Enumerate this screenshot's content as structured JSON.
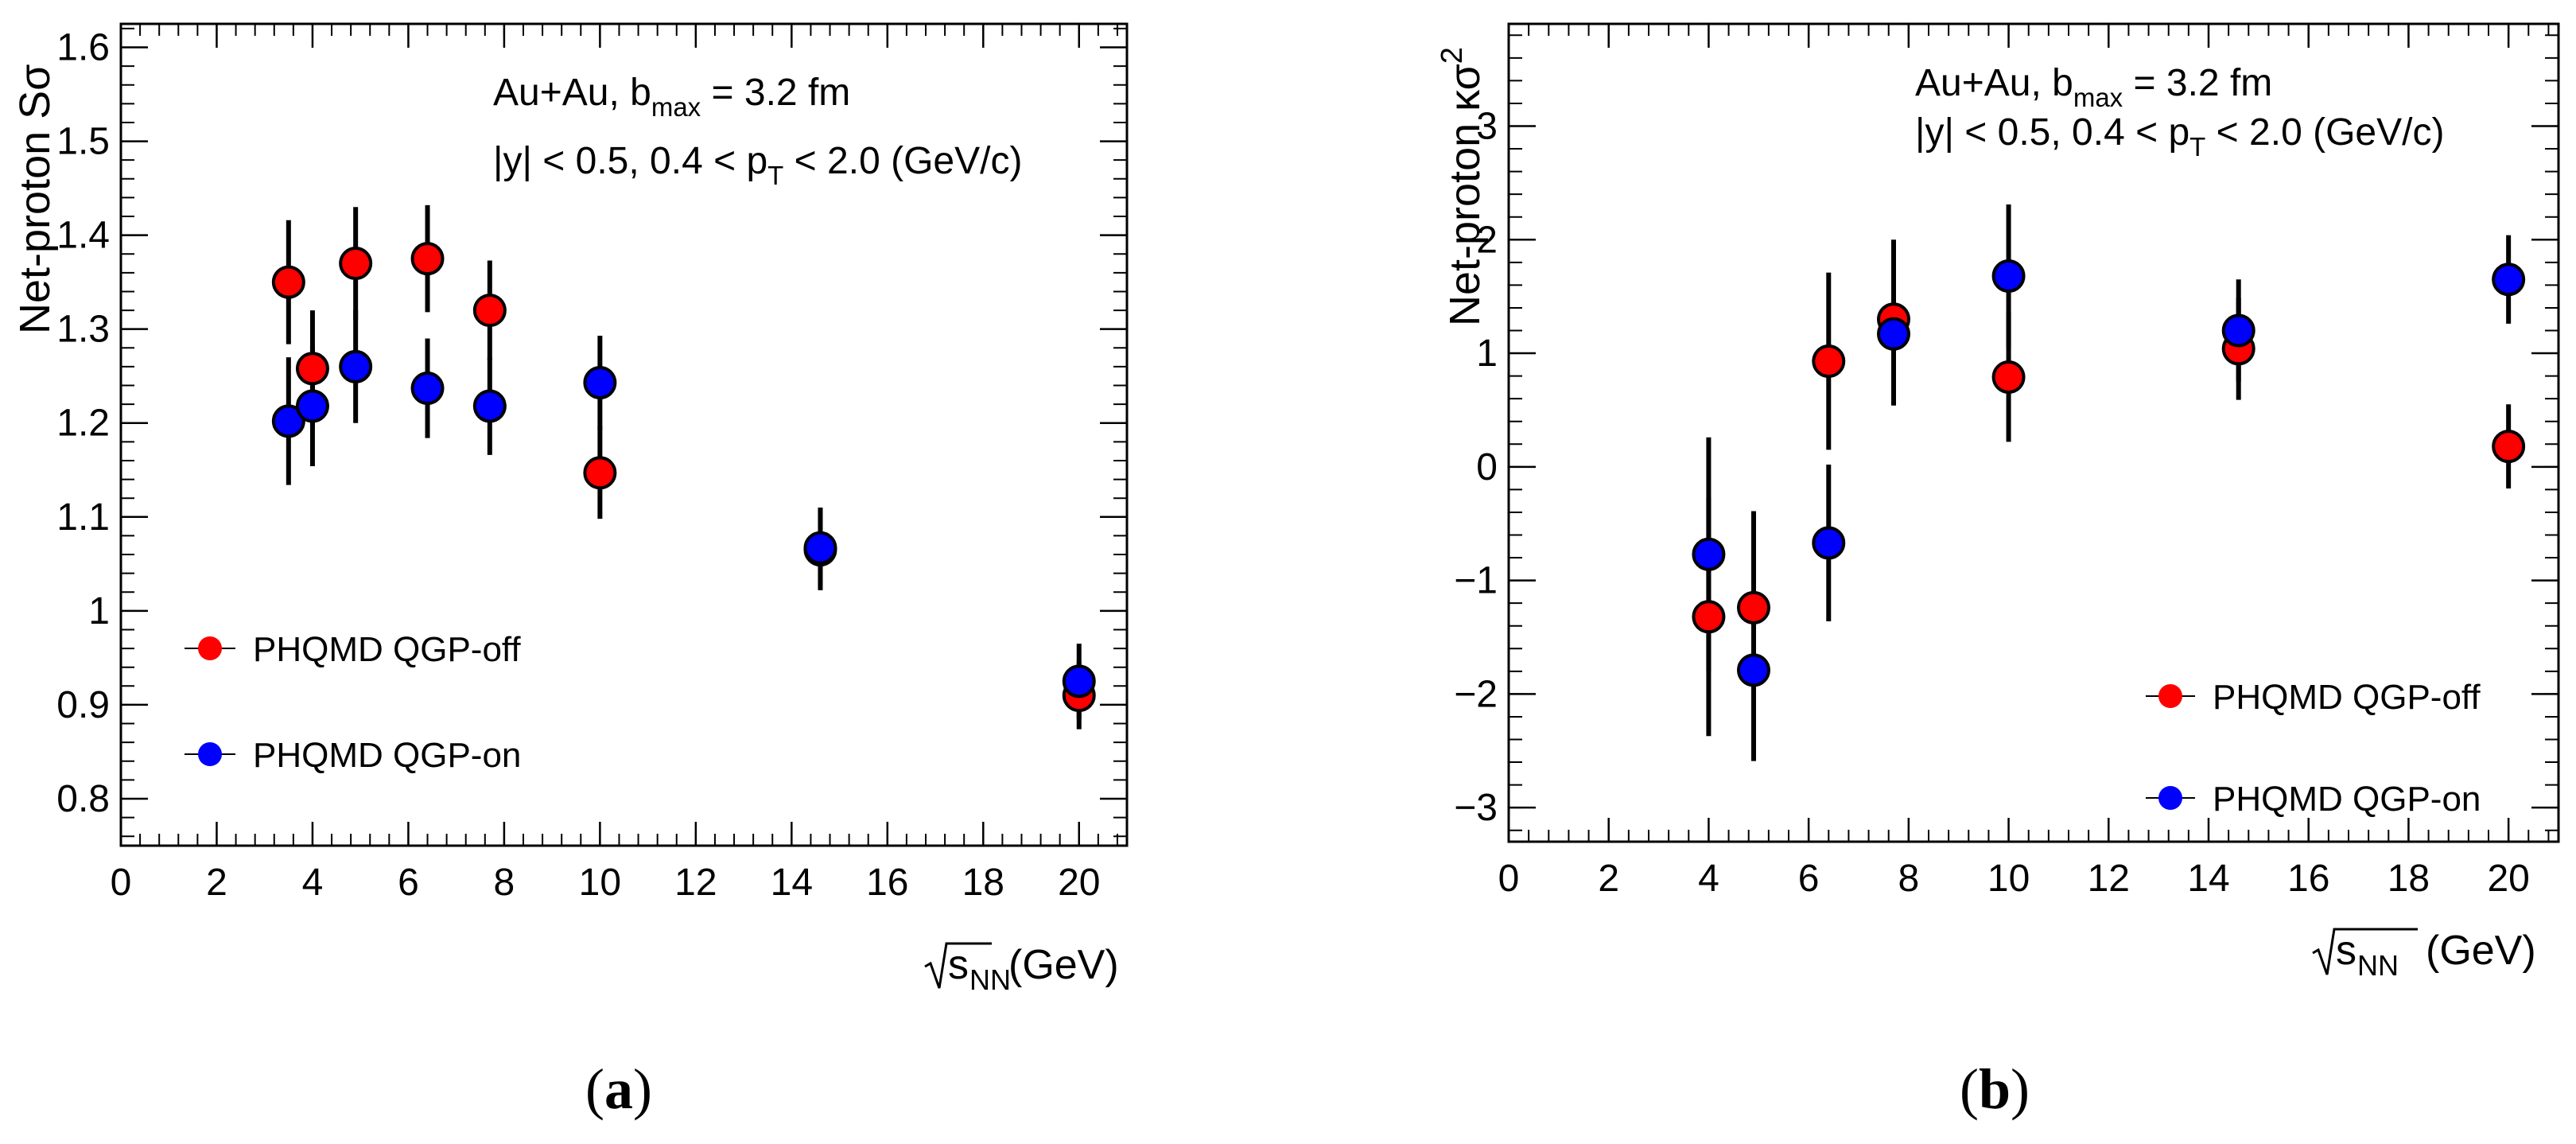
{
  "chart_data": [
    {
      "type": "scatter",
      "panel_label": "a",
      "caption": {
        "open": "(",
        "letter": "a",
        "close": ")"
      },
      "ylabel": {
        "main": "Net-proton S",
        "sym": "σ"
      },
      "xlabel": {
        "sub": "NN",
        "base": "s",
        "unit": "(GeV)"
      },
      "xlim": [
        0,
        21
      ],
      "ylim": [
        0.75,
        1.625
      ],
      "x_ticks": [
        0,
        2,
        4,
        6,
        8,
        10,
        12,
        14,
        16,
        18,
        20
      ],
      "x_tick_labels": [
        "0",
        "2",
        "4",
        "6",
        "8",
        "10",
        "12",
        "14",
        "16",
        "18",
        "20"
      ],
      "y_ticks": [
        0.8,
        0.9,
        1.0,
        1.1,
        1.2,
        1.3,
        1.4,
        1.5,
        1.6
      ],
      "y_tick_labels": [
        "0.8",
        "0.9",
        "1",
        "1.1",
        "1.2",
        "1.3",
        "1.4",
        "1.5",
        "1.6"
      ],
      "annotations": {
        "line1": {
          "a": "Au+Au, b",
          "sub": "max",
          "b": " = 3.2 fm"
        },
        "line2": {
          "a": "|y| < 0.5, 0.4 < p",
          "sub": "T",
          "b": " < 2.0 (GeV/c)"
        }
      },
      "legend": {
        "placement": "center-left",
        "entries": [
          "PHQMD QGP-off",
          "PHQMD QGP-on"
        ]
      },
      "series": [
        {
          "name": "PHQMD QGP-off",
          "color": "#ff0000",
          "x": [
            3.5,
            4.0,
            4.9,
            6.4,
            7.7,
            10.0,
            14.6,
            20.0
          ],
          "y": [
            1.35,
            1.258,
            1.37,
            1.375,
            1.32,
            1.147,
            1.065,
            0.91
          ],
          "err": [
            0.066,
            0.062,
            0.06,
            0.057,
            0.053,
            0.049,
            0.043,
            0.036
          ]
        },
        {
          "name": "PHQMD QGP-on",
          "color": "#0000ff",
          "x": [
            3.5,
            4.0,
            4.9,
            6.4,
            7.7,
            10.0,
            14.6,
            20.0
          ],
          "y": [
            1.202,
            1.218,
            1.26,
            1.237,
            1.218,
            1.243,
            1.067,
            0.925
          ],
          "err": [
            0.068,
            0.064,
            0.06,
            0.053,
            0.052,
            0.05,
            0.043,
            0.04
          ]
        }
      ]
    },
    {
      "type": "scatter",
      "panel_label": "b",
      "caption": {
        "open": "(",
        "letter": "b",
        "close": ")"
      },
      "ylabel": {
        "main": "Net-proton κσ",
        "sup": "2"
      },
      "xlabel": {
        "sub": "NN",
        "base": "s",
        "unit": "(GeV)"
      },
      "xlim": [
        0,
        21
      ],
      "ylim": [
        -3.3,
        3.9
      ],
      "x_ticks": [
        0,
        2,
        4,
        6,
        8,
        10,
        12,
        14,
        16,
        18,
        20
      ],
      "x_tick_labels": [
        "0",
        "2",
        "4",
        "6",
        "8",
        "10",
        "12",
        "14",
        "16",
        "18",
        "20"
      ],
      "y_ticks": [
        -3,
        -2,
        -1,
        0,
        1,
        2,
        3
      ],
      "y_tick_labels": [
        "−3",
        "−2",
        "−1",
        "0",
        "1",
        "2",
        "3"
      ],
      "annotations": {
        "line1": {
          "a": "Au+Au, b",
          "sub": "max",
          "b": " = 3.2 fm"
        },
        "line2": {
          "a": "|y| < 0.5, 0.4 < p",
          "sub": "T",
          "b": " < 2.0 (GeV/c)"
        }
      },
      "legend": {
        "placement": "bottom-right",
        "entries": [
          "PHQMD QGP-off",
          "PHQMD QGP-on"
        ]
      },
      "series": [
        {
          "name": "PHQMD QGP-off",
          "color": "#ff0000",
          "x": [
            4.0,
            4.9,
            6.4,
            7.7,
            10.0,
            14.6,
            20.0
          ],
          "y": [
            -1.32,
            -1.24,
            0.93,
            1.3,
            0.79,
            1.04,
            0.18
          ],
          "err": [
            1.05,
            0.85,
            0.78,
            0.7,
            0.57,
            0.45,
            0.37
          ]
        },
        {
          "name": "PHQMD QGP-on",
          "color": "#0000ff",
          "x": [
            4.0,
            4.9,
            6.4,
            7.7,
            10.0,
            14.6,
            20.0
          ],
          "y": [
            -0.77,
            -1.79,
            -0.67,
            1.17,
            1.68,
            1.2,
            1.65
          ],
          "err": [
            1.03,
            0.8,
            0.69,
            0.63,
            0.63,
            0.45,
            0.39
          ]
        }
      ]
    }
  ]
}
